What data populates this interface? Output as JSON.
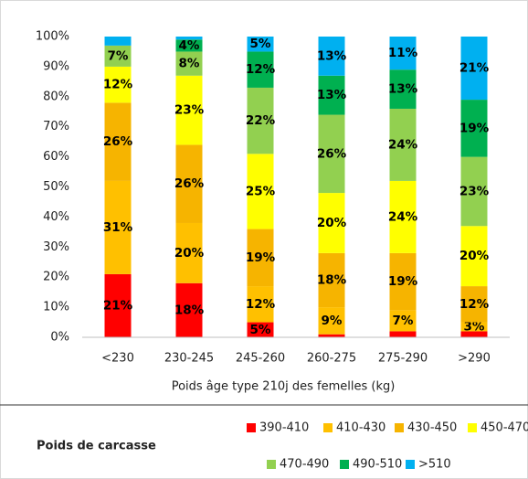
{
  "chart_data": {
    "type": "stacked_bar",
    "x_label": "Poids âge type 210j des femelles (kg)",
    "legend_title": "Poids de carcasse",
    "categories": [
      "<230",
      "230-245",
      "245-260",
      "260-275",
      "275-290",
      ">290"
    ],
    "series": [
      {
        "name": "390-410",
        "color": "#ff0000",
        "values": [
          21,
          18,
          5,
          1,
          2,
          2
        ],
        "value_labels": [
          "21%",
          "18%",
          "5%",
          null,
          null,
          null
        ]
      },
      {
        "name": "410-430",
        "color": "#ffc000",
        "values": [
          31,
          20,
          12,
          9,
          7,
          3
        ],
        "value_labels": [
          "31%",
          "20%",
          "12%",
          "9%",
          "7%",
          "3%"
        ]
      },
      {
        "name": "430-450",
        "color": "#f6b400",
        "values": [
          26,
          26,
          19,
          18,
          19,
          12
        ],
        "value_labels": [
          "26%",
          "26%",
          "19%",
          "18%",
          "19%",
          "12%"
        ]
      },
      {
        "name": "450-470",
        "color": "#ffff00",
        "values": [
          12,
          23,
          25,
          20,
          24,
          20
        ],
        "value_labels": [
          "12%",
          "23%",
          "25%",
          "20%",
          "24%",
          "20%"
        ]
      },
      {
        "name": "470-490",
        "color": "#92d050",
        "values": [
          7,
          8,
          22,
          26,
          24,
          23
        ],
        "value_labels": [
          "7%",
          "8%",
          "22%",
          "26%",
          "24%",
          "23%"
        ]
      },
      {
        "name": "490-510",
        "color": "#00b050",
        "values": [
          0,
          4,
          12,
          13,
          13,
          19
        ],
        "value_labels": [
          null,
          "4%",
          "12%",
          "13%",
          "13%",
          "19%"
        ]
      },
      {
        "name": ">510",
        "color": "#00b0f0",
        "values": [
          3,
          1,
          5,
          13,
          11,
          21
        ],
        "value_labels": [
          null,
          null,
          "5%",
          "13%",
          "11%",
          "21%"
        ]
      }
    ],
    "ylim": [
      0,
      100
    ],
    "yticks": [
      {
        "value": 0,
        "label": "0%"
      },
      {
        "value": 10,
        "label": "10%"
      },
      {
        "value": 20,
        "label": "20%"
      },
      {
        "value": 30,
        "label": "30%"
      },
      {
        "value": 40,
        "label": "40%"
      },
      {
        "value": 50,
        "label": "50%"
      },
      {
        "value": 60,
        "label": "60%"
      },
      {
        "value": 70,
        "label": "70%"
      },
      {
        "value": 80,
        "label": "80%"
      },
      {
        "value": 90,
        "label": "90%"
      },
      {
        "value": 100,
        "label": "100%"
      }
    ],
    "grid": false
  }
}
